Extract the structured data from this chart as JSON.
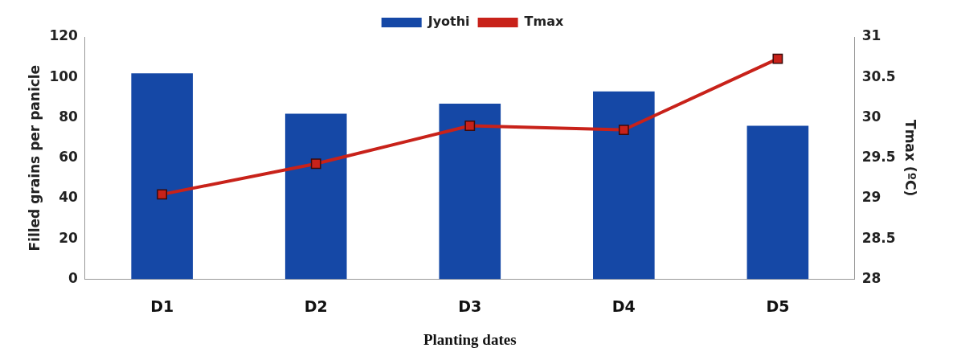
{
  "chart_data": {
    "type": "bar",
    "xlabel": "Planting dates",
    "ylabel": "Filled grains per panicle",
    "y2label": "Tmax (ºC)",
    "categories": [
      "D1",
      "D2",
      "D3",
      "D4",
      "D5"
    ],
    "series": [
      {
        "name": "Jyothi",
        "color": "#1548a6",
        "values": [
          102,
          82,
          87,
          93,
          76
        ]
      },
      {
        "name": "Tmax",
        "type": "line",
        "axis": "y2",
        "color": "#c8221a",
        "marker": "square",
        "values": [
          29.05,
          29.43,
          29.9,
          29.85,
          30.73
        ]
      }
    ],
    "ylim": [
      0,
      120
    ],
    "yticks": [
      0,
      20,
      40,
      60,
      80,
      100,
      120
    ],
    "y2lim": [
      28,
      31
    ],
    "y2ticks": [
      28,
      28.5,
      29,
      29.5,
      30,
      30.5,
      31
    ],
    "grid": false,
    "legend": "top"
  }
}
